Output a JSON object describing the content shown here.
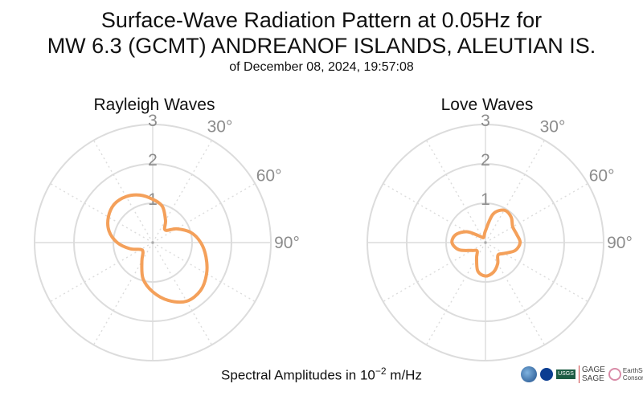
{
  "title": {
    "line1": "Surface-Wave Radiation Pattern at 0.05Hz for",
    "line2": "MW 6.3 (GCMT) ANDREANOF ISLANDS, ALEUTIAN IS.",
    "line3": "of December 08, 2024, 19:57:08"
  },
  "footer": {
    "prefix": "Spectral Amplitudes in 10",
    "exponent": "−2",
    "suffix": " m/Hz"
  },
  "logos": {
    "usgs": "USGS",
    "gage": "GAGE",
    "sage": "SAGE",
    "earthscope": "EarthScope",
    "consortium": "Consortium"
  },
  "colors": {
    "pattern": "#f4a05a",
    "grid": "#dcdcdc",
    "tick_text": "#8c8c8c"
  },
  "chart_data": [
    {
      "type": "polar-line",
      "title": "Rayleigh Waves",
      "r_ticks": [
        "1",
        "2",
        "3"
      ],
      "r_range": [
        0,
        3
      ],
      "theta_ticks": [
        "30°",
        "60°",
        "90°"
      ],
      "theta_direction": "clockwise",
      "theta_zero": "top",
      "grid": true,
      "series": [
        {
          "theta_deg": [
            0,
            15,
            30,
            45,
            60,
            75,
            90,
            105,
            120,
            135,
            150,
            165,
            180,
            195,
            210,
            225,
            240,
            255,
            270,
            285,
            300,
            315,
            330,
            345,
            360
          ],
          "r": [
            1.1,
            0.95,
            0.65,
            0.45,
            0.7,
            1.0,
            1.22,
            1.4,
            1.58,
            1.72,
            1.72,
            1.52,
            1.25,
            0.95,
            0.55,
            0.35,
            0.35,
            0.6,
            0.9,
            1.15,
            1.3,
            1.38,
            1.35,
            1.25,
            1.1
          ]
        }
      ]
    },
    {
      "type": "polar-line",
      "title": "Love Waves",
      "r_ticks": [
        "1",
        "2",
        "3"
      ],
      "r_range": [
        0,
        3
      ],
      "theta_ticks": [
        "30°",
        "60°",
        "90°"
      ],
      "theta_direction": "clockwise",
      "theta_zero": "top",
      "grid": true,
      "series": [
        {
          "theta_deg": [
            0,
            15,
            30,
            45,
            60,
            75,
            90,
            105,
            120,
            135,
            150,
            165,
            180,
            195,
            210,
            225,
            240,
            255,
            270,
            285,
            300,
            315,
            330,
            345,
            360
          ],
          "r": [
            0.3,
            0.75,
            0.95,
            0.92,
            0.8,
            0.82,
            0.88,
            0.78,
            0.55,
            0.45,
            0.62,
            0.78,
            0.85,
            0.75,
            0.45,
            0.3,
            0.4,
            0.7,
            0.85,
            0.78,
            0.55,
            0.25,
            0.15,
            0.15,
            0.3
          ]
        }
      ]
    }
  ]
}
